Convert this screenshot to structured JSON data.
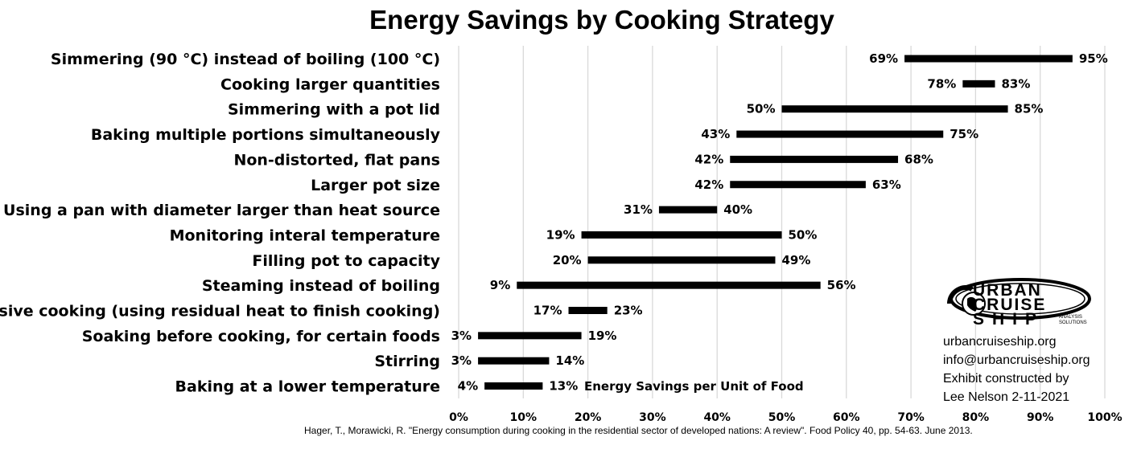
{
  "title": "Energy Savings by Cooking Strategy",
  "chart_data": {
    "type": "bar",
    "subtype": "floating-range",
    "title": "Energy Savings by Cooking Strategy",
    "xlabel": "Energy Savings per Unit of Food",
    "xlim": [
      0,
      100
    ],
    "x_ticks": [
      "0%",
      "10%",
      "20%",
      "30%",
      "40%",
      "50%",
      "60%",
      "70%",
      "80%",
      "90%",
      "100%"
    ],
    "grid": "vertical",
    "categories": [
      "Simmering (90 °C) instead of boiling (100 °C)",
      "Cooking larger quantities",
      "Simmering with a pot lid",
      "Baking multiple portions simultaneously",
      "Non-distorted, flat pans",
      "Larger pot size",
      "Using a pan with diameter larger than heat source",
      "Monitoring interal temperature",
      "Filling pot to capacity",
      "Steaming instead of boiling",
      "Passive cooking (using residual heat to finish cooking)",
      "Soaking before cooking, for certain foods",
      "Stirring",
      "Baking at a lower temperature"
    ],
    "low": [
      69,
      78,
      50,
      43,
      42,
      42,
      31,
      19,
      20,
      9,
      17,
      3,
      3,
      4
    ],
    "high": [
      95,
      83,
      85,
      75,
      68,
      63,
      40,
      50,
      49,
      56,
      23,
      19,
      14,
      13
    ],
    "low_labels": [
      "69%",
      "78%",
      "50%",
      "43%",
      "42%",
      "42%",
      "31%",
      "19%",
      "20%",
      "9%",
      "17%",
      "3%",
      "3%",
      "4%"
    ],
    "high_labels": [
      "95%",
      "83%",
      "85%",
      "75%",
      "68%",
      "63%",
      "40%",
      "50%",
      "49%",
      "56%",
      "23%",
      "19%",
      "14%",
      "13%"
    ],
    "bar_color": "#000000",
    "grid_color": "#d9d9d9"
  },
  "logo": {
    "lines": [
      "URBAN",
      "CRUISE",
      "SHIP"
    ],
    "sub": [
      "ANALYSIS",
      "SOLUTIONS"
    ]
  },
  "credits": {
    "site": "urbancruiseship.org",
    "email": "info@urbancruiseship.org",
    "line3": "Exhibit constructed by",
    "line4": "Lee Nelson 2-11-2021"
  },
  "source": "Hager, T., Morawicki, R. \"Energy consumption during cooking in the residential sector of developed nations: A review\". Food Policy 40, pp. 54-63. June 2013."
}
